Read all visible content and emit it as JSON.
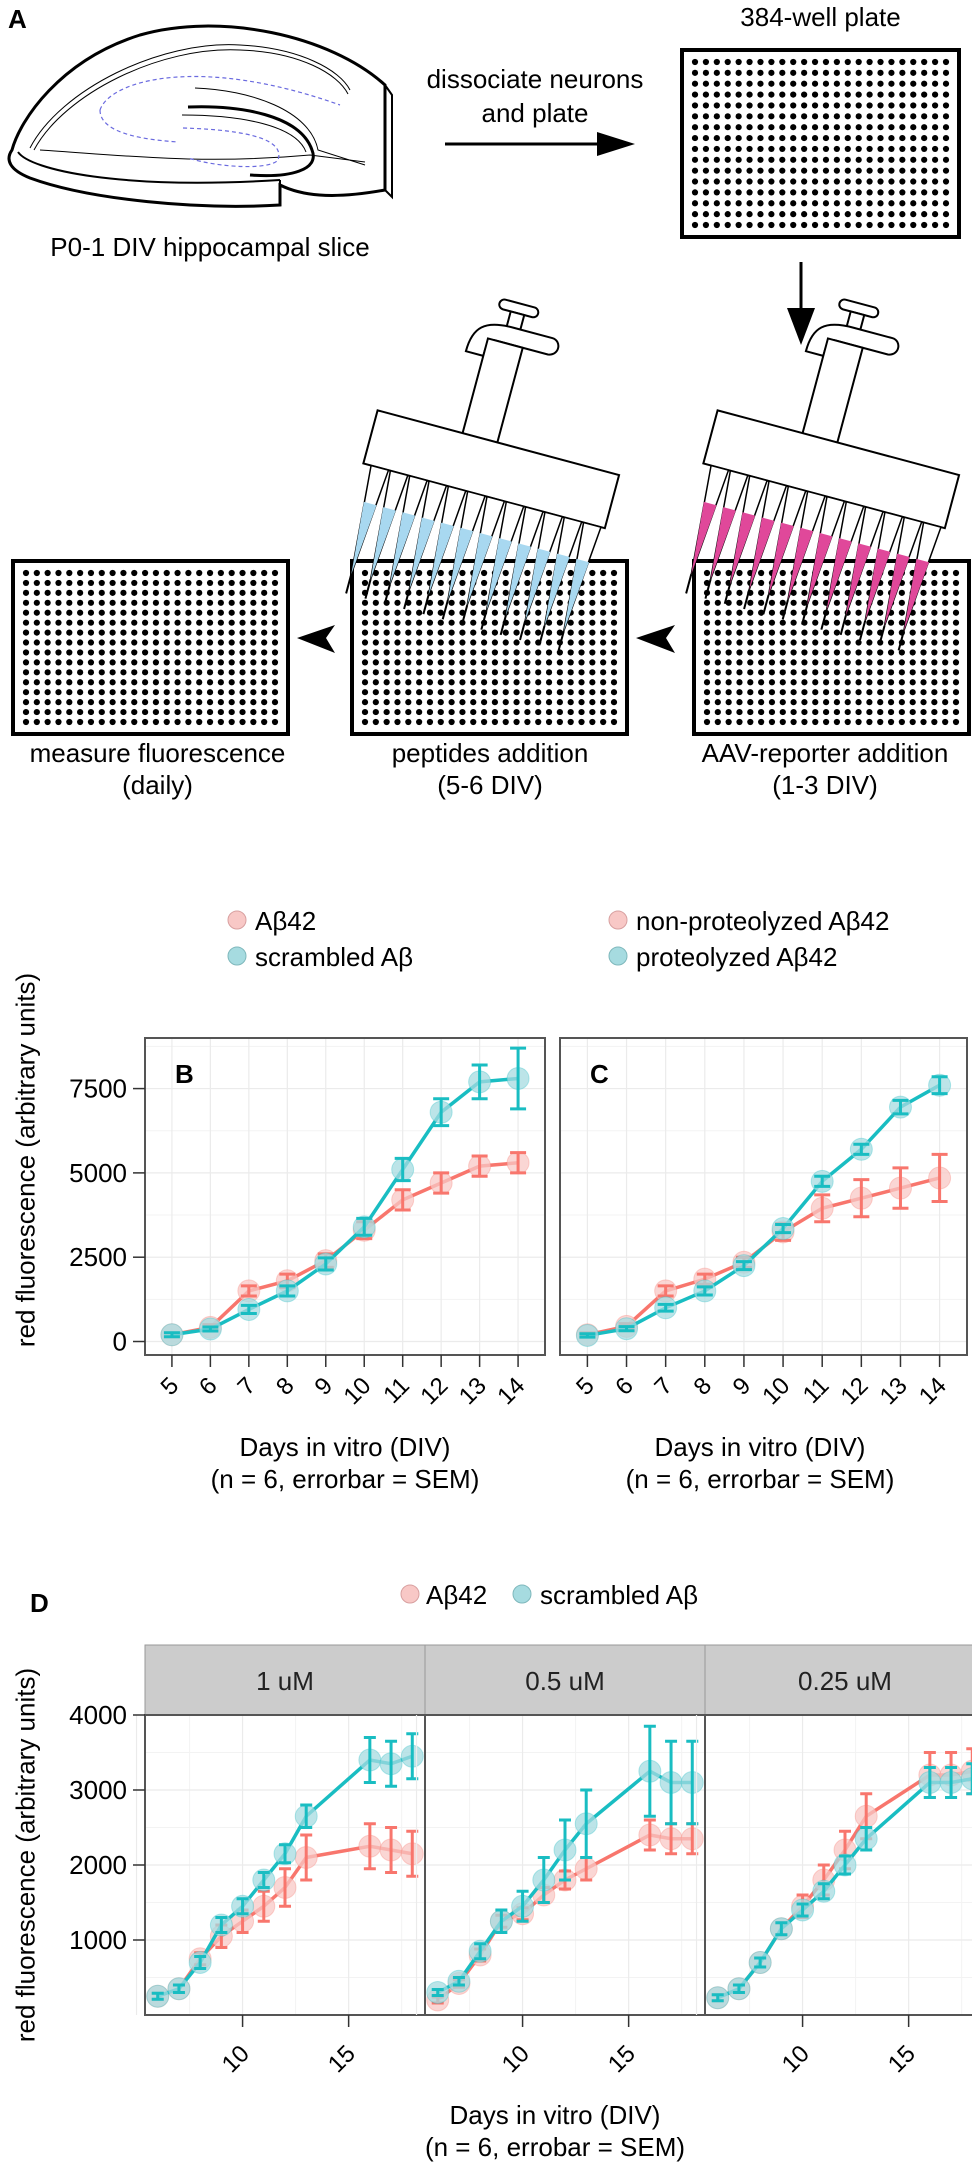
{
  "panel_a": {
    "letter": "A",
    "slice_label": "P0-1 DIV hippocampal slice",
    "arrow1_label_line1": "dissociate neurons",
    "arrow1_label_line2": "and plate",
    "plate_title": "384-well plate",
    "step_aav_line1": "AAV-reporter addition",
    "step_aav_line2": "(1-3 DIV)",
    "step_peptides_line1": "peptides addition",
    "step_peptides_line2": "(5-6 DIV)",
    "step_measure_line1": "measure fluorescence",
    "step_measure_line2": "(daily)",
    "plate_rows": 16,
    "plate_cols": 24,
    "colors": {
      "aav_liquid": "#e0489a",
      "peptide_liquid": "#a8d8f0",
      "slice_dashes": "#6a6adf"
    }
  },
  "colors": {
    "red_series": "#f8766d",
    "teal_series": "#19bdc2",
    "red_fill": "#f8c8c6",
    "teal_fill": "#a6dbe0",
    "strip_bg": "#cccccc",
    "grid": "#ebebeb"
  },
  "chart_data": [
    {
      "id": "B",
      "type": "line",
      "panel_letter": "B",
      "title": "",
      "xlabel": "Days in vitro (DIV)",
      "xlabel2": "(n = 6, errorbar = SEM)",
      "ylabel": "red fluorescence (arbitrary units)",
      "x": [
        5,
        6,
        7,
        8,
        9,
        10,
        11,
        12,
        13,
        14
      ],
      "xticks": [
        "5",
        "6",
        "7",
        "8",
        "9",
        "10",
        "11",
        "12",
        "13",
        "14"
      ],
      "yticks": [
        0,
        2500,
        5000,
        7500
      ],
      "ytick_labels": [
        "0",
        "2500",
        "5000",
        "7500"
      ],
      "xlim": [
        4.3,
        14.7
      ],
      "ylim": [
        -400,
        9000
      ],
      "legend": [
        "Aβ42",
        "scrambled Aβ"
      ],
      "legend_position": "top",
      "grid": true,
      "series": [
        {
          "name": "Aβ42",
          "color": "red",
          "values": [
            200,
            420,
            1500,
            1800,
            2400,
            3300,
            4200,
            4700,
            5200,
            5300
          ],
          "sem": [
            60,
            80,
            150,
            200,
            200,
            250,
            300,
            300,
            300,
            300
          ]
        },
        {
          "name": "scrambled Aβ",
          "color": "teal",
          "values": [
            200,
            370,
            950,
            1500,
            2300,
            3400,
            5100,
            6800,
            7700,
            7800
          ],
          "sem": [
            60,
            60,
            120,
            150,
            180,
            250,
            330,
            400,
            500,
            900
          ]
        }
      ]
    },
    {
      "id": "C",
      "type": "line",
      "panel_letter": "C",
      "title": "",
      "xlabel": "Days in vitro (DIV)",
      "xlabel2": "(n = 6, errorbar = SEM)",
      "x": [
        5,
        6,
        7,
        8,
        9,
        10,
        11,
        12,
        13,
        14
      ],
      "xticks": [
        "5",
        "6",
        "7",
        "8",
        "9",
        "10",
        "11",
        "12",
        "13",
        "14"
      ],
      "yticks": [
        0,
        2500,
        5000,
        7500
      ],
      "xlim": [
        4.3,
        14.7
      ],
      "ylim": [
        -400,
        9000
      ],
      "legend": [
        "non-proteolyzed Aβ42",
        "proteolyzed Aβ42"
      ],
      "legend_position": "top",
      "grid": true,
      "series": [
        {
          "name": "non-proteolyzed Aβ42",
          "color": "red",
          "values": [
            200,
            450,
            1500,
            1850,
            2350,
            3250,
            3950,
            4250,
            4550,
            4850
          ],
          "sem": [
            60,
            80,
            150,
            150,
            150,
            250,
            400,
            550,
            600,
            700
          ]
        },
        {
          "name": "proteolyzed Aβ42",
          "color": "teal",
          "values": [
            180,
            380,
            1000,
            1500,
            2250,
            3350,
            4750,
            5700,
            6950,
            7600
          ],
          "sem": [
            50,
            60,
            100,
            120,
            120,
            120,
            150,
            150,
            200,
            250
          ]
        }
      ]
    },
    {
      "id": "D",
      "type": "line",
      "panel_letter": "D",
      "xlabel": "Days in vitro (DIV)",
      "xlabel2": "(n = 6, errobar = SEM)",
      "ylabel": "red fluorescence (arbitrary units)",
      "legend": [
        "Aβ42",
        "scrambled Aβ"
      ],
      "legend_position": "top",
      "grid": true,
      "xticks": [
        10,
        15
      ],
      "yticks": [
        1000,
        2000,
        3000,
        4000
      ],
      "xlim": [
        5.4,
        18.6
      ],
      "ylim": [
        0,
        4000
      ],
      "facets": [
        {
          "label": "1 uM",
          "x": [
            6,
            7,
            8,
            9,
            10,
            11,
            12,
            13,
            16,
            17,
            18
          ],
          "series": [
            {
              "name": "Aβ42",
              "color": "red",
              "values": [
                250,
                350,
                750,
                1050,
                1250,
                1450,
                1700,
                2100,
                2250,
                2200,
                2150
              ],
              "sem": [
                40,
                50,
                80,
                150,
                150,
                200,
                250,
                300,
                300,
                300,
                300
              ]
            },
            {
              "name": "scrambled Aβ",
              "color": "teal",
              "values": [
                250,
                350,
                700,
                1200,
                1450,
                1800,
                2150,
                2650,
                3400,
                3350,
                3450
              ],
              "sem": [
                40,
                50,
                80,
                100,
                100,
                100,
                120,
                150,
                300,
                300,
                300
              ]
            }
          ]
        },
        {
          "label": "0.5 uM",
          "x": [
            6,
            7,
            8,
            9,
            10,
            11,
            12,
            13,
            16,
            17,
            18
          ],
          "series": [
            {
              "name": "Aβ42",
              "color": "red",
              "values": [
                200,
                420,
                800,
                1250,
                1350,
                1600,
                1800,
                1950,
                2400,
                2350,
                2350
              ],
              "sem": [
                40,
                50,
                80,
                80,
                80,
                100,
                120,
                150,
                200,
                200,
                200
              ]
            },
            {
              "name": "scrambled Aβ",
              "color": "teal",
              "values": [
                300,
                450,
                850,
                1250,
                1450,
                1800,
                2200,
                2550,
                3250,
                3100,
                3100
              ],
              "sem": [
                40,
                50,
                100,
                150,
                200,
                300,
                400,
                450,
                600,
                550,
                550
              ]
            }
          ]
        },
        {
          "label": "0.25 uM",
          "x": [
            6,
            7,
            8,
            9,
            10,
            11,
            12,
            13,
            16,
            17,
            18
          ],
          "series": [
            {
              "name": "Aβ42",
              "color": "red",
              "values": [
                230,
                350,
                700,
                1150,
                1450,
                1800,
                2200,
                2650,
                3200,
                3200,
                3250
              ],
              "sem": [
                40,
                50,
                60,
                80,
                150,
                200,
                250,
                300,
                300,
                300,
                300
              ]
            },
            {
              "name": "scrambled Aβ",
              "color": "teal",
              "values": [
                230,
                350,
                700,
                1150,
                1400,
                1650,
                2000,
                2350,
                3100,
                3100,
                3150
              ],
              "sem": [
                40,
                50,
                60,
                80,
                80,
                100,
                120,
                150,
                200,
                200,
                200
              ]
            }
          ]
        }
      ]
    }
  ]
}
